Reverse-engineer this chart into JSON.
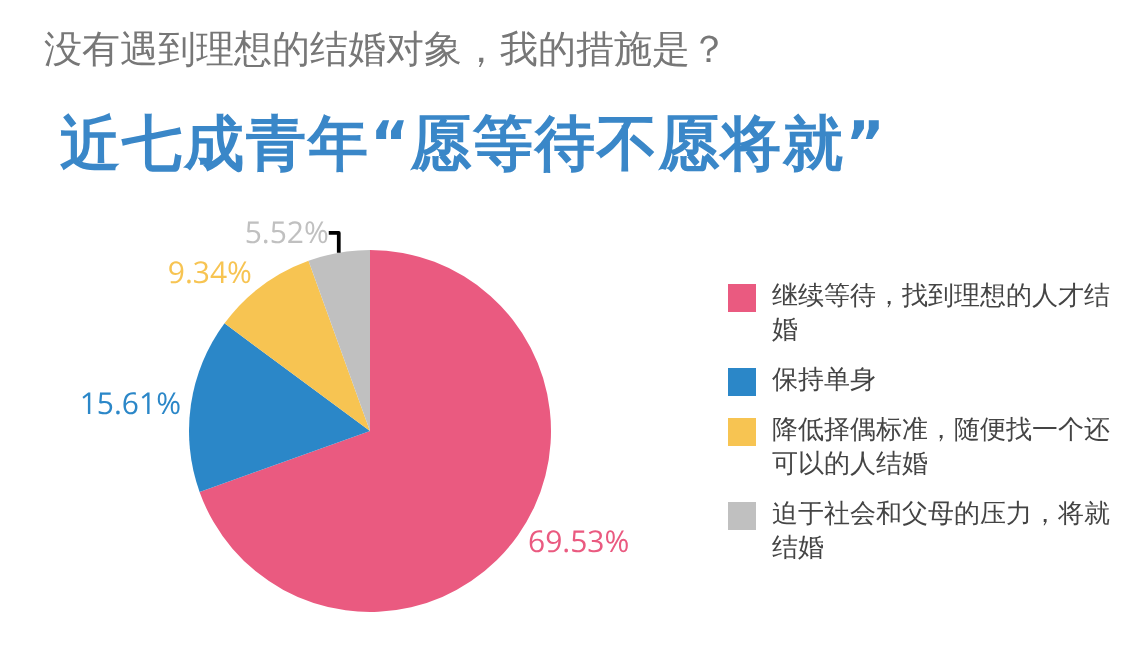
{
  "chart_data": {
    "type": "pie",
    "title": "没有遇到理想的结婚对象，我的措施是？",
    "subtitle": "近七成青年“愿等待不愿将就”",
    "categories": [
      "继续等待，找到理想的人才结婚",
      "保持单身",
      "降低择偶标准，随便找一个还可以的人结婚",
      "迫于社会和父母的压力，将就结婚"
    ],
    "values": [
      69.53,
      15.61,
      9.34,
      5.52
    ],
    "colors": [
      "#ea5a80",
      "#2b87c8",
      "#f7c452",
      "#c0c0c0"
    ],
    "value_labels": [
      "69.53%",
      "15.61%",
      "9.34%",
      "5.52%"
    ],
    "legend": "right"
  }
}
